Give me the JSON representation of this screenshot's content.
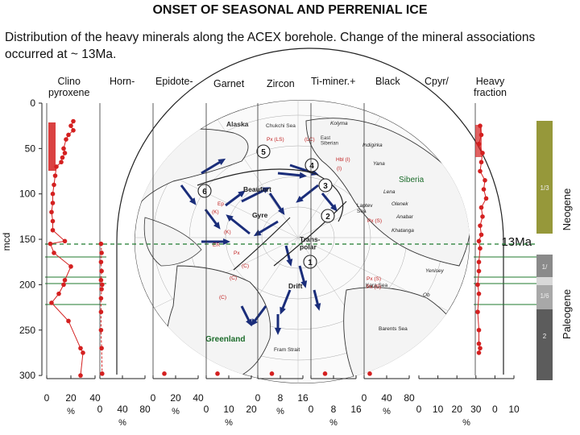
{
  "title": "ONSET OF SEASONAL AND PERRENIAL ICE",
  "subtitle": "Distribution of the heavy minerals along the ACEX borehole. Change of the mineral associations occurred at ~ 13Ma.",
  "column_headers": {
    "clino": "Clino\npyroxene",
    "horn": "Horn-",
    "epidote": "Epidote-",
    "garnet": "Garnet",
    "zircon": "Zircon",
    "timiner": "Ti-miner.+",
    "black": "Black",
    "cpyr": "Cpyr/",
    "heavy": "Heavy\nfraction"
  },
  "depth_axis": {
    "label": "mcd",
    "ticks": [
      "0",
      "50",
      "100",
      "150",
      "200",
      "250",
      "300"
    ]
  },
  "bottom_axes": {
    "clino": {
      "ticks": [
        "0",
        "20",
        "40"
      ],
      "unit": "%"
    },
    "horn": {
      "ticks": [
        "0",
        "40",
        "80"
      ],
      "unit": "%"
    },
    "epidote": {
      "ticks": [
        "0",
        "20",
        "40"
      ],
      "unit": "%"
    },
    "garnet": {
      "ticks": [
        "0",
        "10",
        "20"
      ],
      "unit": "%"
    },
    "zircon": {
      "ticks": [
        "0",
        "8",
        "16"
      ],
      "unit": "%"
    },
    "timiner": {
      "ticks": [
        "0",
        "8",
        "16"
      ],
      "unit": "%"
    },
    "black": {
      "ticks": [
        "0",
        "40",
        "80"
      ],
      "unit": "%"
    },
    "heavy": {
      "ticks": [
        "0",
        "10",
        "20",
        "30",
        "0",
        "10"
      ],
      "unit": "%"
    }
  },
  "boundary_label": "13Ma",
  "epochs": {
    "neogene": "Neogene",
    "paleogene": "Paleogene"
  },
  "units": [
    "1/3",
    "1/",
    "1/6",
    "2"
  ],
  "map_labels": {
    "alaska": "Alaska",
    "chukchi": "Chukchi Sea",
    "siberia": "Siberia",
    "greenland": "Greenland",
    "beaufort": "Beaufort",
    "gyre": "Gyre",
    "transpolar": "Trans-\npolar",
    "drift": "Drift",
    "laptev": "Laptev\nSea",
    "kara": "Kara Sea",
    "barents": "Barents Sea",
    "fram": "Fram Strait",
    "lena": "Lena",
    "olenek": "Olenek",
    "anabar": "Anabar",
    "khatanga": "Khatanga",
    "yenisey": "Yenisey",
    "ob": "Ob",
    "kolyma": "Kolyma",
    "indigirka": "Indigirka",
    "yana": "Yana",
    "mackenzie": "Mackenzie",
    "eastsib": "East\nSiberian"
  },
  "map_circles": [
    "1",
    "2",
    "3",
    "4",
    "5",
    "6"
  ],
  "map_annotations": [
    "Px (LS)",
    "(LC)",
    "Hbl (I)",
    "(I)",
    "Px (S)",
    "Ep",
    "(K)",
    "(K)",
    "ER",
    "Px",
    "(C)",
    "(C)",
    "(C)",
    "Px (S)",
    "Px (S)"
  ],
  "colors": {
    "data": "#d42020",
    "neogene": "#96983a",
    "paleogene_dark": "#5c5c5c",
    "paleogene_mid": "#8a8a8a",
    "paleogene_light": "#a8a8a8",
    "green_line": "#1f7a2e",
    "map_stroke": "#2a2a2a",
    "arrow": "#1a2d7a"
  },
  "chart_data": {
    "type": "scatter",
    "ylabel": "mcd",
    "ylim": [
      0,
      300
    ],
    "series": [
      {
        "values": [
          [
            22,
            20
          ],
          [
            20,
            25
          ],
          [
            22,
            30
          ],
          [
            18,
            35
          ],
          [
            16,
            40
          ],
          [
            14,
            50
          ],
          [
            15,
            55
          ],
          [
            13,
            60
          ],
          [
            12,
            65
          ],
          [
            8,
            70
          ],
          [
            7,
            80
          ],
          [
            6,
            90
          ],
          [
            5,
            100
          ],
          [
            5,
            110
          ],
          [
            4,
            120
          ],
          [
            5,
            130
          ],
          [
            5,
            140
          ],
          [
            15,
            152
          ],
          [
            3,
            155
          ],
          [
            6,
            165
          ],
          [
            20,
            180
          ],
          [
            15,
            195
          ],
          [
            14,
            200
          ],
          [
            10,
            210
          ],
          [
            4,
            220
          ],
          [
            18,
            240
          ],
          [
            28,
            270
          ],
          [
            30,
            275
          ],
          [
            28,
            300
          ]
        ]
      },
      {
        "values": [
          [
            2,
            155
          ],
          [
            3,
            165
          ],
          [
            2,
            175
          ],
          [
            3,
            185
          ],
          [
            2,
            195
          ],
          [
            4,
            200
          ],
          [
            3,
            205
          ],
          [
            2,
            215
          ],
          [
            2,
            230
          ],
          [
            2,
            250
          ],
          [
            3,
            270
          ],
          [
            4,
            298
          ]
        ]
      },
      {
        "values": [
          [
            10,
            298
          ]
        ]
      },
      {
        "values": [
          [
            5,
            298
          ]
        ]
      },
      {
        "values": [
          [
            5,
            298
          ]
        ]
      },
      {
        "values": [
          [
            5,
            298
          ]
        ]
      },
      {
        "values": [
          [
            10,
            298
          ]
        ]
      },
      {
        "values": [
          [
            4,
            25
          ],
          [
            5,
            35
          ],
          [
            3,
            45
          ],
          [
            6,
            55
          ],
          [
            5,
            65
          ],
          [
            4,
            75
          ],
          [
            8,
            85
          ],
          [
            7,
            95
          ],
          [
            9,
            105
          ],
          [
            5,
            115
          ],
          [
            6,
            125
          ],
          [
            4,
            135
          ],
          [
            5,
            145
          ],
          [
            3,
            152
          ],
          [
            4,
            160
          ],
          [
            3,
            175
          ],
          [
            3,
            185
          ],
          [
            2,
            200
          ],
          [
            3,
            210
          ],
          [
            2,
            230
          ],
          [
            3,
            250
          ],
          [
            3,
            265
          ],
          [
            4,
            270
          ],
          [
            3,
            275
          ]
        ]
      }
    ]
  }
}
